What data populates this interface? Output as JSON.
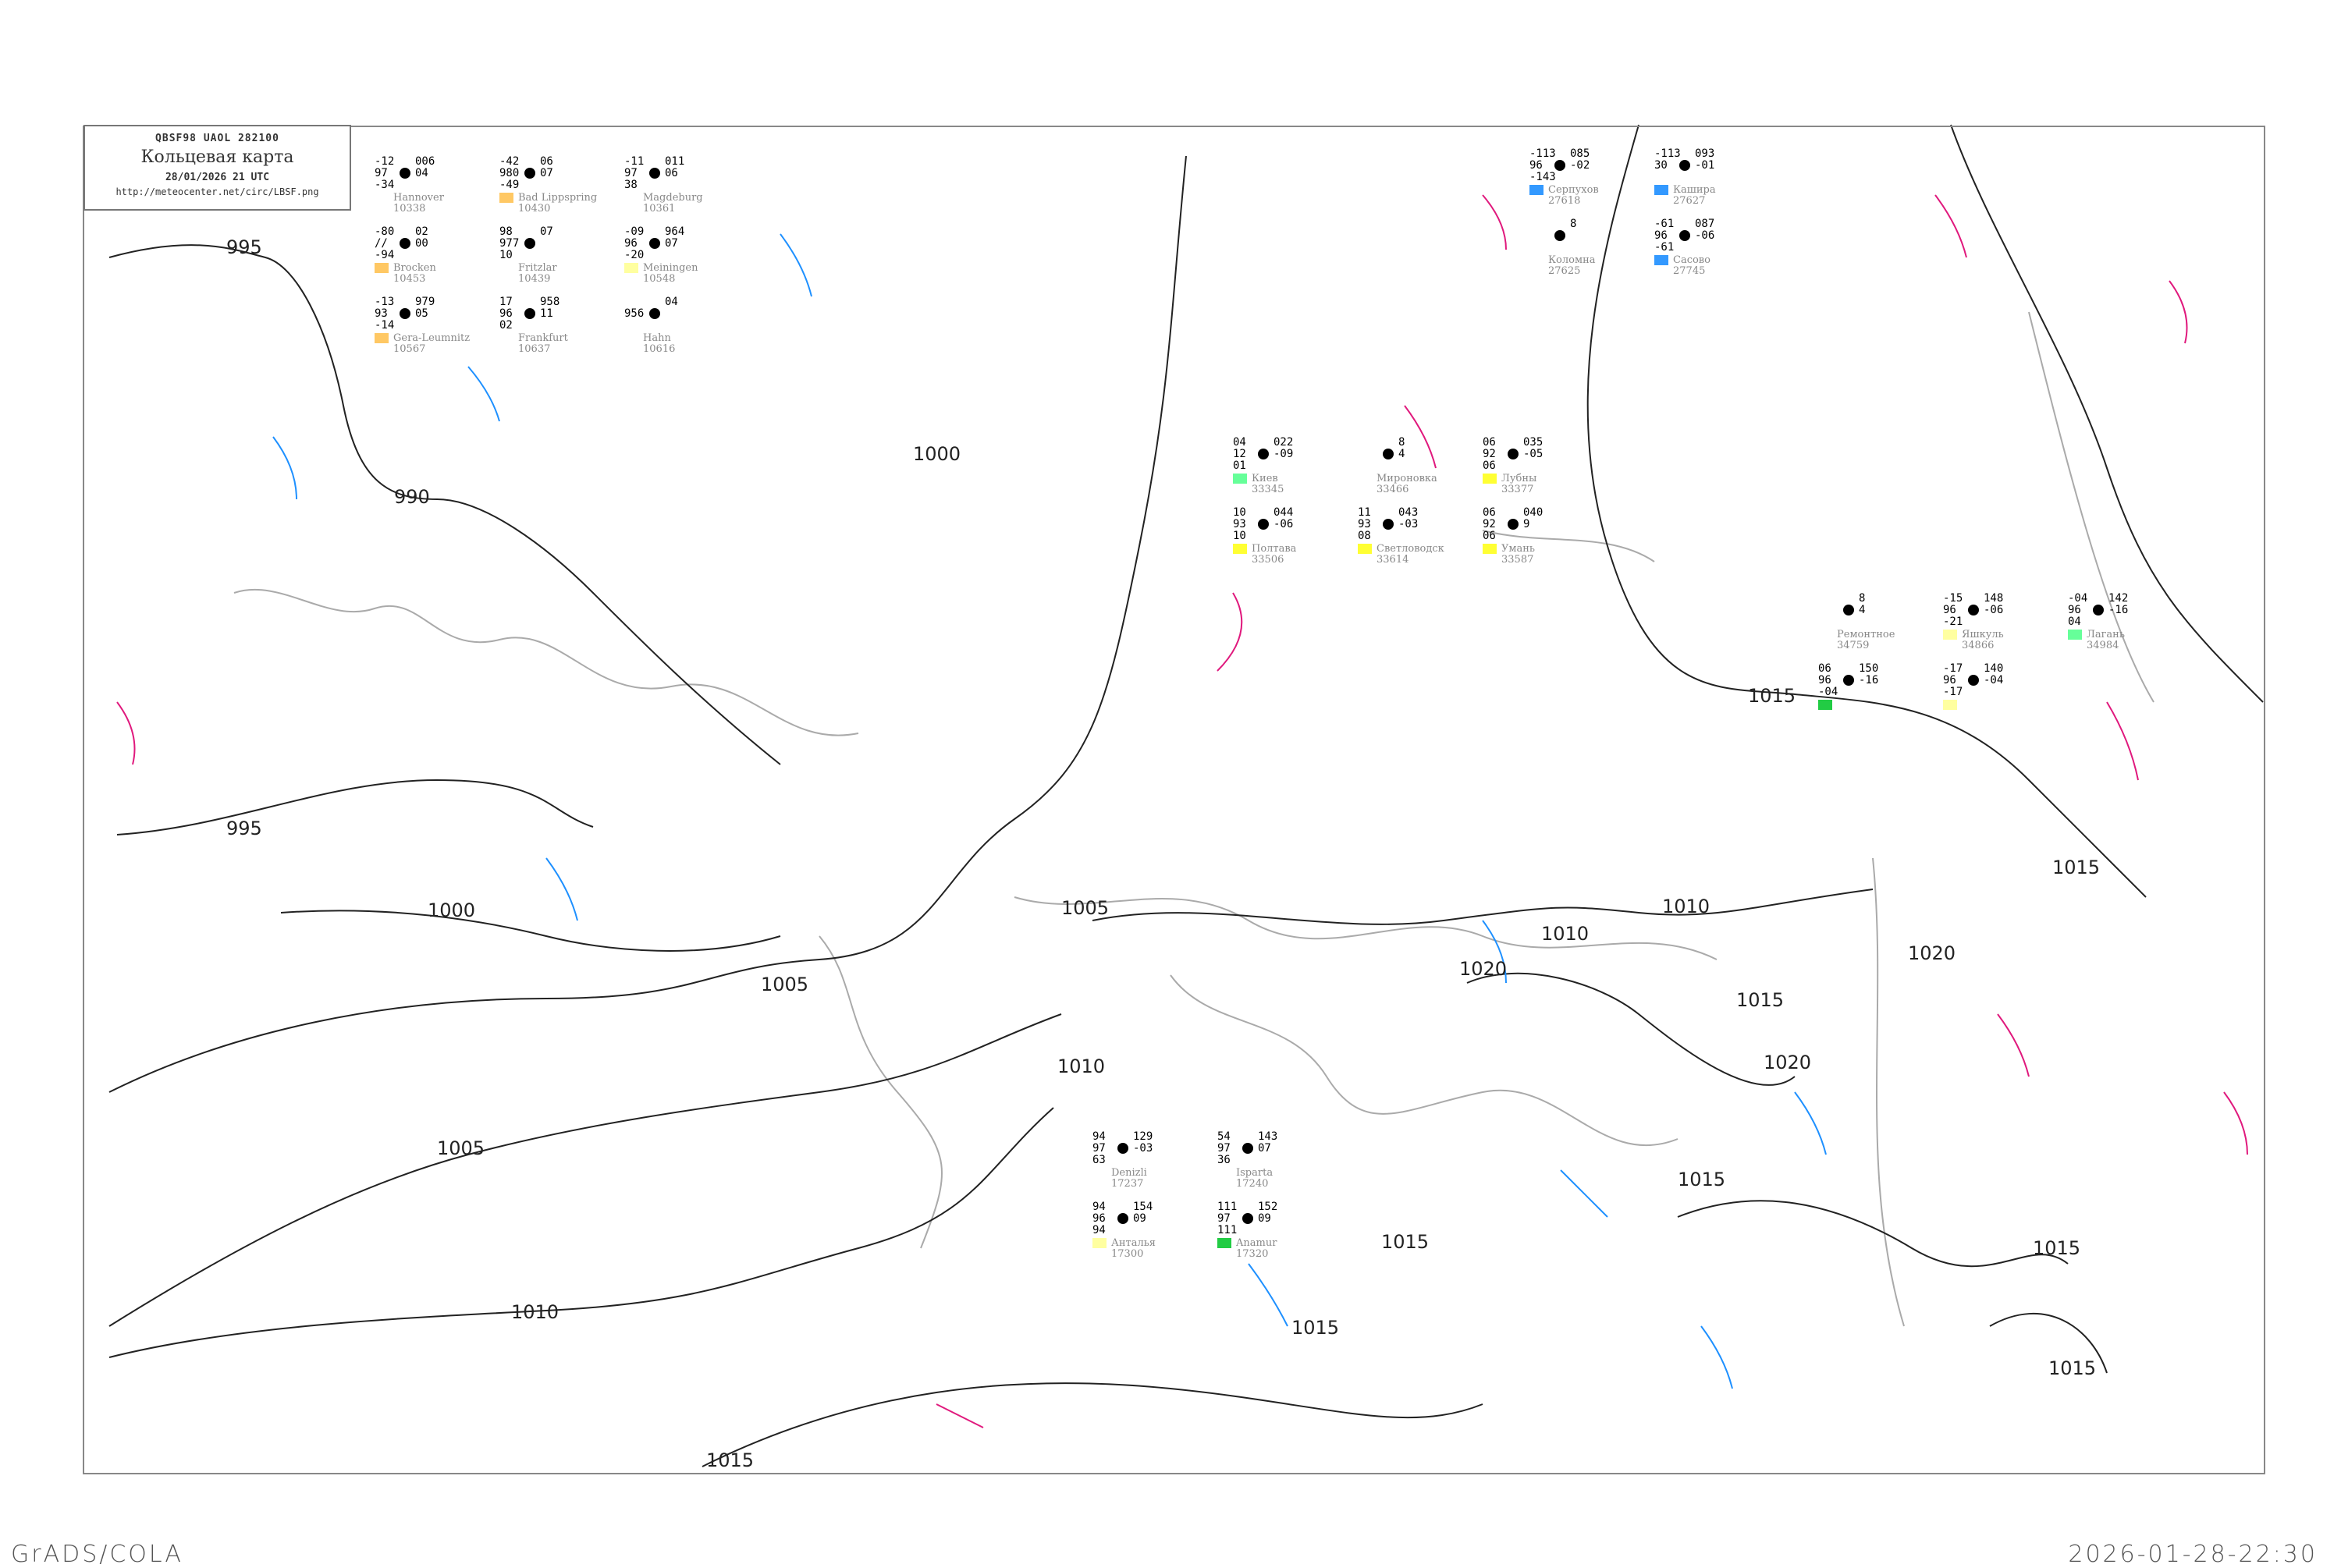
{
  "header": {
    "code": "QBSF98  UAOL  282100",
    "title": "Кольцевая карта",
    "date": "28/01/2026 21 UTC",
    "url": "http://meteocenter.net/circ/LBSF.png"
  },
  "footer": {
    "left": "GrADS/COLA",
    "right": "2026-01-28-22:30"
  },
  "colors": {
    "isobar": "#222222",
    "isotherm_pos": "#e0197d",
    "isotherm_neg": "#1e90ff",
    "coast": "#aaaaaa",
    "frame": "#888888"
  },
  "isobar_labels": [
    "995",
    "990",
    "1000",
    "1000",
    "995",
    "1005",
    "1005",
    "1010",
    "1015",
    "1005",
    "1010",
    "1010",
    "1015",
    "1015",
    "1015",
    "1020",
    "1020",
    "1020",
    "1015",
    "1015",
    "1015",
    "1015",
    "1015",
    "1010"
  ],
  "stations": [
    {
      "name": "Hannover",
      "id": "10338",
      "t": "-12",
      "v": "97",
      "td": "-34",
      "p": "006",
      "tend": "04",
      "cover": ""
    },
    {
      "name": "Bad Lippspring",
      "id": "10430",
      "t": "-42",
      "v": "980",
      "td": "-49",
      "p": "06",
      "tend": "07",
      "cover": "#ffc864"
    },
    {
      "name": "Magdeburg",
      "id": "10361",
      "t": "-11",
      "v": "97",
      "td": "38",
      "p": "011",
      "tend": "06",
      "cover": ""
    },
    {
      "name": "Brocken",
      "id": "10453",
      "t": "-80",
      "v": "//",
      "td": "-94",
      "p": "02",
      "tend": "00",
      "cover": "#ffc864"
    },
    {
      "name": "Fritzlar",
      "id": "10439",
      "t": "98",
      "v": "977",
      "td": "10",
      "p": "07",
      "tend": "",
      "cover": ""
    },
    {
      "name": "Meiningen",
      "id": "10548",
      "t": "-09",
      "v": "96",
      "td": "-20",
      "p": "964",
      "tend": "07",
      "cover": "#ffffa0"
    },
    {
      "name": "Gera-Leumnitz",
      "id": "10567",
      "t": "-13",
      "v": "93",
      "td": "-14",
      "p": "979",
      "tend": "05",
      "cover": "#ffc864"
    },
    {
      "name": "Frankfurt",
      "id": "10637",
      "t": "17",
      "v": "96",
      "td": "02",
      "p": "958",
      "tend": "11",
      "cover": ""
    },
    {
      "name": "Hahn",
      "id": "10616",
      "t": "",
      "v": "956",
      "td": "",
      "p": "04",
      "tend": "",
      "cover": ""
    },
    {
      "name": "Серпухов",
      "id": "27618",
      "t": "-113",
      "v": "96",
      "td": "-143",
      "p": "085",
      "tend": "-02",
      "cover": "#3399ff"
    },
    {
      "name": "Кашира",
      "id": "27627",
      "t": "-113",
      "v": "30",
      "td": "",
      "p": "093",
      "tend": "-01",
      "cover": "#3399ff"
    },
    {
      "name": "Коломна",
      "id": "27625",
      "t": "",
      "v": "",
      "td": "",
      "p": "8",
      "tend": "",
      "cover": ""
    },
    {
      "name": "Сасово",
      "id": "27745",
      "t": "-61",
      "v": "96",
      "td": "-61",
      "p": "087",
      "tend": "-06",
      "cover": "#3399ff"
    },
    {
      "name": "Киев",
      "id": "33345",
      "t": "04",
      "v": "12",
      "td": "01",
      "p": "022",
      "tend": "-09",
      "cover": "#66ff99"
    },
    {
      "name": "Мироновка",
      "id": "33466",
      "t": "",
      "v": "",
      "td": "",
      "p": "8",
      "tend": "4",
      "cover": ""
    },
    {
      "name": "Лубны",
      "id": "33377",
      "t": "06",
      "v": "92",
      "td": "06",
      "p": "035",
      "tend": "-05",
      "cover": "#ffff33"
    },
    {
      "name": "Полтава",
      "id": "33506",
      "t": "10",
      "v": "93",
      "td": "10",
      "p": "044",
      "tend": "-06",
      "cover": "#ffff33"
    },
    {
      "name": "Светловодск",
      "id": "33614",
      "t": "11",
      "v": "93",
      "td": "08",
      "p": "043",
      "tend": "-03",
      "cover": "#ffff33"
    },
    {
      "name": "Умань",
      "id": "33587",
      "t": "06",
      "v": "92",
      "td": "06",
      "p": "040",
      "tend": "9",
      "cover": "#ffff33"
    },
    {
      "name": "Ремонтное",
      "id": "34759",
      "t": "",
      "v": "",
      "td": "",
      "p": "8",
      "tend": "4",
      "cover": ""
    },
    {
      "name": "Яшкуль",
      "id": "34866",
      "t": "-15",
      "v": "96",
      "td": "-21",
      "p": "148",
      "tend": "-06",
      "cover": "#ffffa0"
    },
    {
      "name": "Лагань",
      "id": "34984",
      "t": "-04",
      "v": "96",
      "td": "04",
      "p": "142",
      "tend": "-16",
      "cover": "#66ff99"
    },
    {
      "name": "",
      "id": "",
      "t": "06",
      "v": "96",
      "td": "-04",
      "p": "150",
      "tend": "-16",
      "cover": "#22cc44"
    },
    {
      "name": "",
      "id": "",
      "t": "-17",
      "v": "96",
      "td": "-17",
      "p": "140",
      "tend": "-04",
      "cover": "#ffffa0"
    },
    {
      "name": "Denizli",
      "id": "17237",
      "t": "94",
      "v": "97",
      "td": "63",
      "p": "129",
      "tend": "-03",
      "cover": ""
    },
    {
      "name": "Isparta",
      "id": "17240",
      "t": "54",
      "v": "97",
      "td": "36",
      "p": "143",
      "tend": "07",
      "cover": ""
    },
    {
      "name": "Анталья",
      "id": "17300",
      "t": "94",
      "v": "96",
      "td": "94",
      "p": "154",
      "tend": "09",
      "cover": "#ffffa0"
    },
    {
      "name": "Anamur",
      "id": "17320",
      "t": "111",
      "v": "97",
      "td": "111",
      "p": "152",
      "tend": "09",
      "cover": "#22cc44"
    }
  ]
}
